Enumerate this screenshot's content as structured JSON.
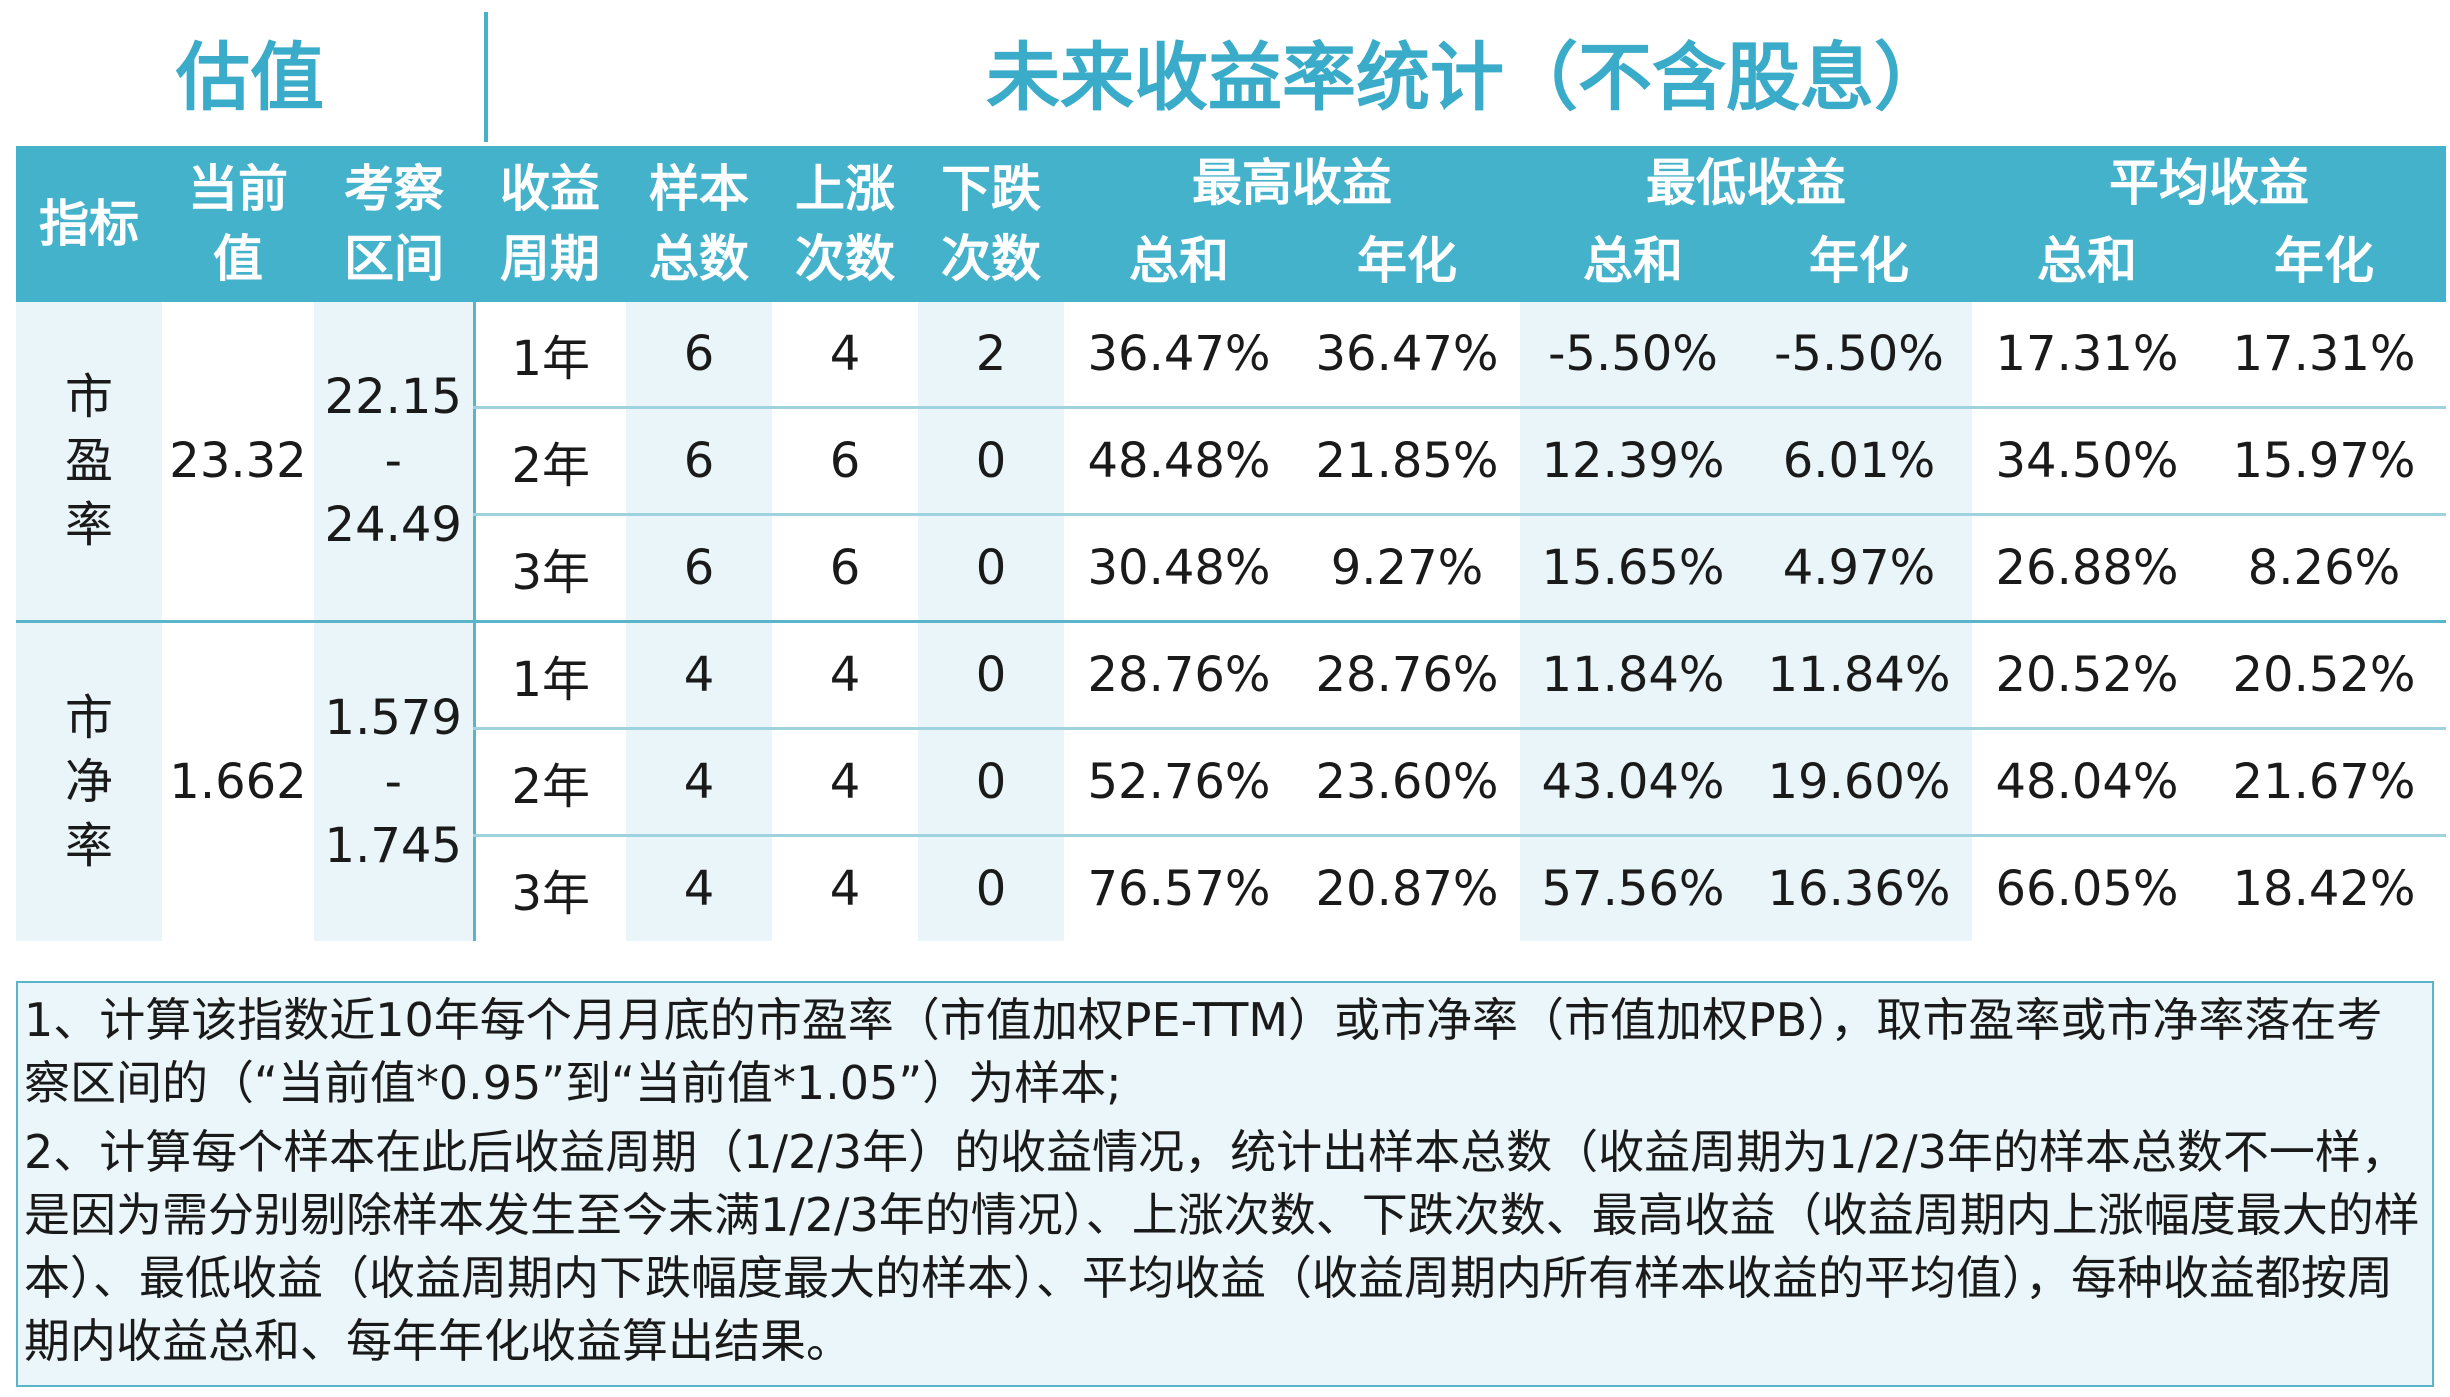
{
  "header": {
    "left_title": "估值",
    "right_title": "未来收益率统计（不含股息）"
  },
  "columns": {
    "indicator": [
      "指标"
    ],
    "current": [
      "当前",
      "值"
    ],
    "range": [
      "考察",
      "区间"
    ],
    "period": [
      "收益",
      "周期"
    ],
    "samples": [
      "样本",
      "总数"
    ],
    "up": [
      "上涨",
      "次数"
    ],
    "down": [
      "下跌",
      "次数"
    ],
    "max": "最高收益",
    "min": "最低收益",
    "avg": "平均收益",
    "total": "总和",
    "annual": "年化"
  },
  "groups": [
    {
      "indicator": [
        "市",
        "盈",
        "率"
      ],
      "current": "23.32",
      "range": [
        "22.15",
        "-",
        "24.49"
      ],
      "rows": [
        {
          "period": "1年",
          "samples": "6",
          "up": "4",
          "down": "2",
          "max_total": "36.47%",
          "max_annual": "36.47%",
          "min_total": "-5.50%",
          "min_annual": "-5.50%",
          "avg_total": "17.31%",
          "avg_annual": "17.31%"
        },
        {
          "period": "2年",
          "samples": "6",
          "up": "6",
          "down": "0",
          "max_total": "48.48%",
          "max_annual": "21.85%",
          "min_total": "12.39%",
          "min_annual": "6.01%",
          "avg_total": "34.50%",
          "avg_annual": "15.97%"
        },
        {
          "period": "3年",
          "samples": "6",
          "up": "6",
          "down": "0",
          "max_total": "30.48%",
          "max_annual": "9.27%",
          "min_total": "15.65%",
          "min_annual": "4.97%",
          "avg_total": "26.88%",
          "avg_annual": "8.26%"
        }
      ]
    },
    {
      "indicator": [
        "市",
        "净",
        "率"
      ],
      "current": "1.662",
      "range": [
        "1.579",
        "-",
        "1.745"
      ],
      "rows": [
        {
          "period": "1年",
          "samples": "4",
          "up": "4",
          "down": "0",
          "max_total": "28.76%",
          "max_annual": "28.76%",
          "min_total": "11.84%",
          "min_annual": "11.84%",
          "avg_total": "20.52%",
          "avg_annual": "20.52%"
        },
        {
          "period": "2年",
          "samples": "4",
          "up": "4",
          "down": "0",
          "max_total": "52.76%",
          "max_annual": "23.60%",
          "min_total": "43.04%",
          "min_annual": "19.60%",
          "avg_total": "48.04%",
          "avg_annual": "21.67%"
        },
        {
          "period": "3年",
          "samples": "4",
          "up": "4",
          "down": "0",
          "max_total": "76.57%",
          "max_annual": "20.87%",
          "min_total": "57.56%",
          "min_annual": "16.36%",
          "avg_total": "66.05%",
          "avg_annual": "18.42%"
        }
      ]
    }
  ],
  "notes": [
    "1、计算该指数近10年每个月月底的市盈率（市值加权PE-TTM）或市净率（市值加权PB），取市盈率或市净率落在考察区间的（“当前值*0.95”到“当前值*1.05”）为样本;",
    "2、计算每个样本在此后收益周期（1/2/3年）的收益情况，统计出样本总数（收益周期为1/2/3年的样本总数不一样，是因为需分别剔除样本发生至今未满1/2/3年的情况）、上涨次数、下跌次数、最高收益（收益周期内上涨幅度最大的样本）、最低收益（收益周期内下跌幅度最大的样本）、平均收益（收益周期内所有样本收益的平均值），每种收益都按周期内收益总和、每年年化收益算出结果。"
  ]
}
